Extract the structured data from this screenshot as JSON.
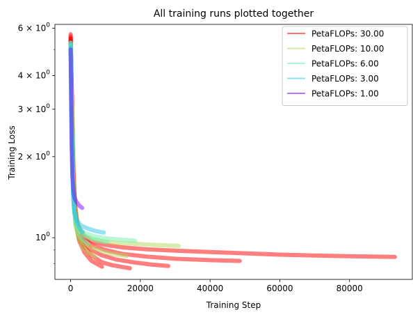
{
  "chart_data": {
    "type": "line",
    "title": "All training runs plotted together",
    "xlabel": "Training Step",
    "ylabel": "Training Loss",
    "yscale": "log",
    "xlim": [
      -4500,
      98000
    ],
    "ylim": [
      0.7,
      6.2
    ],
    "grid": false,
    "legend_position": "top-right",
    "xticks": [
      {
        "value": 0,
        "label": "0"
      },
      {
        "value": 20000,
        "label": "20000"
      },
      {
        "value": 40000,
        "label": "40000"
      },
      {
        "value": 60000,
        "label": "60000"
      },
      {
        "value": 80000,
        "label": "80000"
      }
    ],
    "yticks": [
      {
        "value": 1,
        "label": "10",
        "exp": "0",
        "prefix": ""
      },
      {
        "value": 2,
        "label": "10",
        "exp": "0",
        "prefix": "2 × "
      },
      {
        "value": 3,
        "label": "10",
        "exp": "0",
        "prefix": "3 × "
      },
      {
        "value": 4,
        "label": "10",
        "exp": "0",
        "prefix": "4 × "
      },
      {
        "value": 6,
        "label": "10",
        "exp": "0",
        "prefix": "6 × "
      }
    ],
    "yminor": [
      0.8,
      0.9,
      5
    ],
    "series": [
      {
        "name": "PetaFLOPs: 30.00",
        "color": "#ff0000",
        "runs": [
          [
            [
              0,
              5.6
            ],
            [
              200,
              4.0
            ],
            [
              500,
              2.2
            ],
            [
              1000,
              1.4
            ],
            [
              1500,
              1.15
            ],
            [
              2500,
              0.97
            ],
            [
              4000,
              0.88
            ],
            [
              6000,
              0.82
            ],
            [
              9000,
              0.78
            ]
          ],
          [
            [
              0,
              5.5
            ],
            [
              200,
              3.9
            ],
            [
              500,
              2.1
            ],
            [
              1000,
              1.38
            ],
            [
              1500,
              1.13
            ],
            [
              2500,
              0.99
            ],
            [
              4000,
              0.92
            ],
            [
              6000,
              0.86
            ],
            [
              9000,
              0.81
            ],
            [
              12000,
              0.79
            ],
            [
              17000,
              0.77
            ]
          ],
          [
            [
              0,
              5.4
            ],
            [
              300,
              3.5
            ],
            [
              700,
              1.9
            ],
            [
              1200,
              1.3
            ],
            [
              2000,
              1.07
            ],
            [
              3500,
              0.97
            ],
            [
              6000,
              0.9
            ],
            [
              9000,
              0.86
            ],
            [
              13000,
              0.83
            ],
            [
              18000,
              0.81
            ],
            [
              23000,
              0.795
            ],
            [
              28000,
              0.785
            ]
          ],
          [
            [
              0,
              5.5
            ],
            [
              300,
              3.6
            ],
            [
              700,
              1.9
            ],
            [
              1200,
              1.3
            ],
            [
              2000,
              1.08
            ],
            [
              3500,
              1.0
            ],
            [
              6000,
              0.94
            ],
            [
              10000,
              0.9
            ],
            [
              15000,
              0.87
            ],
            [
              22000,
              0.85
            ],
            [
              30000,
              0.835
            ],
            [
              40000,
              0.825
            ],
            [
              48500,
              0.82
            ]
          ],
          [
            [
              0,
              5.7
            ],
            [
              300,
              3.7
            ],
            [
              700,
              2.0
            ],
            [
              1200,
              1.35
            ],
            [
              2000,
              1.12
            ],
            [
              3500,
              1.02
            ],
            [
              6000,
              0.97
            ],
            [
              10000,
              0.94
            ],
            [
              15000,
              0.92
            ],
            [
              22000,
              0.905
            ],
            [
              30000,
              0.895
            ],
            [
              40000,
              0.885
            ],
            [
              50000,
              0.875
            ],
            [
              60000,
              0.865
            ],
            [
              70000,
              0.858
            ],
            [
              80000,
              0.853
            ],
            [
              88000,
              0.85
            ],
            [
              93000,
              0.848
            ]
          ]
        ]
      },
      {
        "name": "PetaFLOPs: 10.00",
        "color": "#b2d856",
        "runs": [
          [
            [
              0,
              5.3
            ],
            [
              200,
              3.8
            ],
            [
              500,
              2.0
            ],
            [
              900,
              1.35
            ],
            [
              1400,
              1.12
            ],
            [
              2200,
              1.0
            ],
            [
              3500,
              0.92
            ],
            [
              5000,
              0.88
            ],
            [
              7000,
              0.85
            ]
          ],
          [
            [
              0,
              5.2
            ],
            [
              200,
              3.6
            ],
            [
              500,
              2.0
            ],
            [
              900,
              1.32
            ],
            [
              1400,
              1.11
            ],
            [
              2200,
              1.02
            ],
            [
              3500,
              0.96
            ],
            [
              6000,
              0.92
            ],
            [
              9000,
              0.89
            ],
            [
              12000,
              0.87
            ],
            [
              16000,
              0.855
            ]
          ],
          [
            [
              500,
              3.1
            ],
            [
              800,
              2.0
            ],
            [
              1200,
              1.4
            ],
            [
              1800,
              1.16
            ],
            [
              2800,
              1.06
            ],
            [
              4500,
              1.01
            ],
            [
              7000,
              0.98
            ],
            [
              10000,
              0.965
            ],
            [
              14000,
              0.955
            ],
            [
              18000,
              0.95
            ],
            [
              24000,
              0.94
            ],
            [
              31000,
              0.932
            ]
          ]
        ]
      },
      {
        "name": "PetaFLOPs: 6.00",
        "color": "#73f0b0",
        "runs": [
          [
            [
              0,
              5.2
            ],
            [
              200,
              3.7
            ],
            [
              500,
              2.0
            ],
            [
              900,
              1.33
            ],
            [
              1400,
              1.13
            ],
            [
              2200,
              1.04
            ],
            [
              3500,
              0.98
            ],
            [
              5000,
              0.95
            ]
          ],
          [
            [
              0,
              5.3
            ],
            [
              200,
              3.7
            ],
            [
              500,
              2.0
            ],
            [
              900,
              1.33
            ],
            [
              1400,
              1.15
            ],
            [
              2200,
              1.07
            ],
            [
              3500,
              1.02
            ],
            [
              6000,
              0.99
            ],
            [
              9000,
              0.97
            ],
            [
              10500,
              0.965
            ]
          ],
          [
            [
              0,
              5.2
            ],
            [
              200,
              3.6
            ],
            [
              500,
              2.0
            ],
            [
              900,
              1.33
            ],
            [
              1400,
              1.16
            ],
            [
              2200,
              1.09
            ],
            [
              4000,
              1.04
            ],
            [
              7000,
              1.01
            ],
            [
              10000,
              0.995
            ],
            [
              14000,
              0.985
            ],
            [
              18500,
              0.975
            ]
          ]
        ]
      },
      {
        "name": "PetaFLOPs: 3.00",
        "color": "#2ec4e6",
        "runs": [
          [
            [
              0,
              5.3
            ],
            [
              200,
              3.5
            ],
            [
              400,
              2.1
            ],
            [
              700,
              1.45
            ],
            [
              1100,
              1.24
            ],
            [
              1800,
              1.13
            ],
            [
              2600,
              1.08
            ],
            [
              3500,
              1.05
            ]
          ],
          [
            [
              0,
              5.1
            ],
            [
              200,
              3.4
            ],
            [
              400,
              2.1
            ],
            [
              700,
              1.45
            ],
            [
              1100,
              1.25
            ],
            [
              1800,
              1.16
            ],
            [
              3000,
              1.11
            ],
            [
              5000,
              1.08
            ],
            [
              7000,
              1.06
            ],
            [
              9500,
              1.045
            ]
          ]
        ]
      },
      {
        "name": "PetaFLOPs: 1.00",
        "color": "#8000ff",
        "runs": [
          [
            [
              0,
              5.0
            ],
            [
              150,
              3.2
            ],
            [
              300,
              2.2
            ],
            [
              500,
              1.7
            ],
            [
              800,
              1.5
            ],
            [
              1200,
              1.4
            ],
            [
              1800,
              1.35
            ],
            [
              2600,
              1.31
            ],
            [
              3300,
              1.29
            ]
          ]
        ]
      }
    ]
  }
}
